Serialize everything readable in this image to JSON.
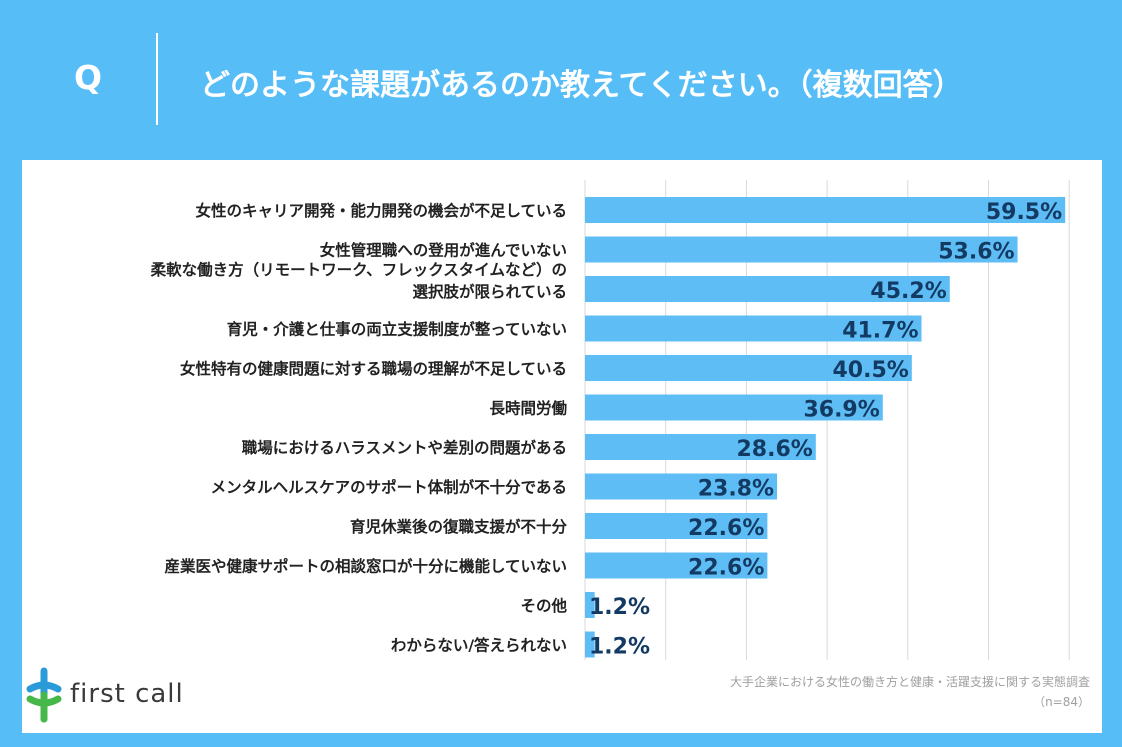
{
  "header": {
    "q_mark": "Q",
    "question": "どのような課題があるのか教えてください。（複数回答）"
  },
  "logo": {
    "text": "first call",
    "icon": "plus-cross-logo-icon"
  },
  "source": {
    "title": "大手企業における女性の働き方と健康・活躍支援に関する実態調査",
    "sample": "（n=84）"
  },
  "colors": {
    "background": "#56bdf7",
    "bar": "#5fbdf5",
    "value_text": "#123a63",
    "logo_blue": "#2a9ad8",
    "logo_green": "#46b84a"
  },
  "chart_data": {
    "type": "bar",
    "orientation": "horizontal",
    "categories": [
      "女性のキャリア開発・能力開発の機会が不足している",
      "女性管理職への登用が進んでいない",
      [
        "柔軟な働き方（リモートワーク、フレックスタイムなど）の",
        "選択肢が限られている"
      ],
      "育児・介護と仕事の両立支援制度が整っていない",
      "女性特有の健康問題に対する職場の理解が不足している",
      "長時間労働",
      "職場におけるハラスメントや差別の問題がある",
      "メンタルヘルスケアのサポート体制が不十分である",
      "育児休業後の復職支援が不十分",
      "産業医や健康サポートの相談窓口が十分に機能していない",
      "その他",
      "わからない/答えられない"
    ],
    "values": [
      59.5,
      53.6,
      45.2,
      41.7,
      40.5,
      36.9,
      28.6,
      23.8,
      22.6,
      22.6,
      1.2,
      1.2
    ],
    "value_labels": [
      "59.5%",
      "53.6%",
      "45.2%",
      "41.7%",
      "40.5%",
      "36.9%",
      "28.6%",
      "23.8%",
      "22.6%",
      "22.6%",
      "1.2%",
      "1.2%"
    ],
    "xlim": [
      0,
      60
    ],
    "grid": true
  }
}
